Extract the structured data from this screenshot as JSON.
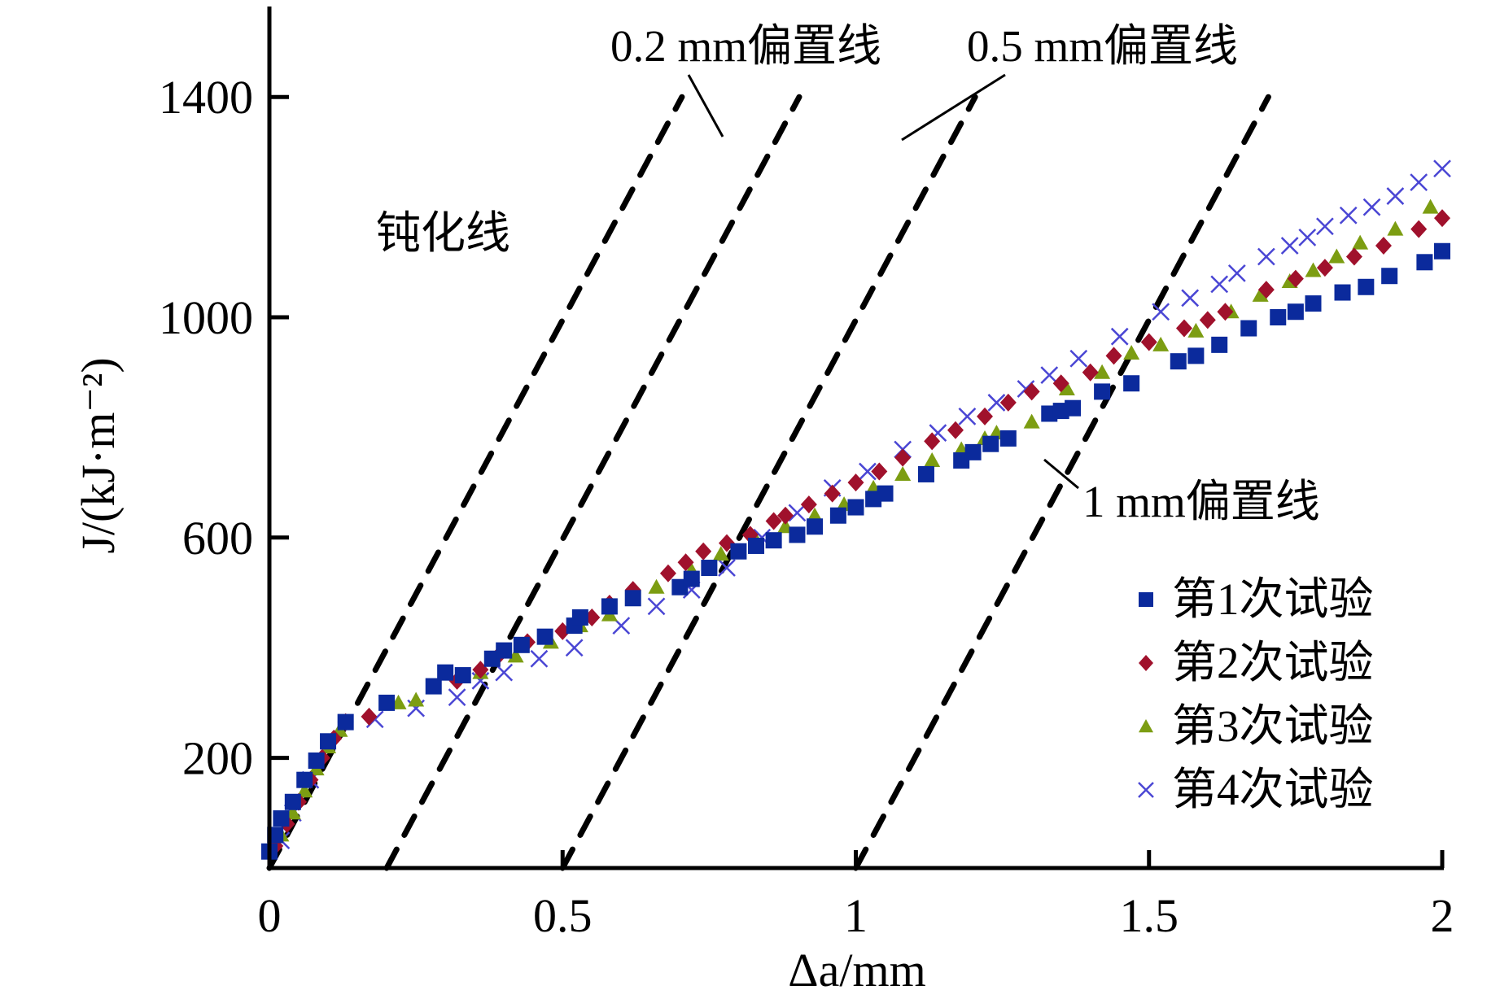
{
  "chart_data": {
    "type": "scatter",
    "title": "",
    "xlabel": "Δa/mm",
    "ylabel": "J/(kJ·m⁻²)",
    "xlim": [
      0,
      2
    ],
    "ylim": [
      0,
      1600
    ],
    "xticks": [
      0,
      0.5,
      1,
      1.5,
      2
    ],
    "xtick_labels": [
      "0",
      "0.5",
      "1",
      "1.5",
      "2"
    ],
    "yticks": [
      200,
      600,
      1000,
      1400
    ],
    "ytick_labels": [
      "200",
      "600",
      "1000",
      "1400"
    ],
    "grid": false,
    "legend_position": "bottom-right",
    "series": [
      {
        "name": "第1次试验",
        "marker": "square",
        "color": "#0b2a9c",
        "x": [
          0,
          0.01,
          0.02,
          0.04,
          0.06,
          0.08,
          0.1,
          0.13,
          0.2,
          0.28,
          0.3,
          0.33,
          0.38,
          0.4,
          0.43,
          0.47,
          0.52,
          0.53,
          0.58,
          0.62,
          0.7,
          0.72,
          0.75,
          0.8,
          0.83,
          0.86,
          0.9,
          0.93,
          0.97,
          1.0,
          1.03,
          1.05,
          1.12,
          1.18,
          1.2,
          1.23,
          1.26,
          1.33,
          1.35,
          1.37,
          1.42,
          1.47,
          1.55,
          1.58,
          1.62,
          1.67,
          1.72,
          1.75,
          1.78,
          1.83,
          1.87,
          1.91,
          1.97,
          2.0
        ],
        "y": [
          30,
          60,
          90,
          120,
          160,
          195,
          230,
          265,
          300,
          330,
          355,
          350,
          380,
          395,
          405,
          420,
          440,
          455,
          475,
          490,
          510,
          525,
          545,
          575,
          585,
          595,
          605,
          620,
          640,
          655,
          670,
          680,
          715,
          740,
          755,
          770,
          780,
          825,
          830,
          835,
          865,
          880,
          920,
          930,
          950,
          980,
          1000,
          1010,
          1025,
          1045,
          1055,
          1075,
          1100,
          1120
        ]
      },
      {
        "name": "第2次试验",
        "marker": "diamond",
        "color": "#a0112c",
        "x": [
          0.01,
          0.03,
          0.05,
          0.07,
          0.09,
          0.11,
          0.13,
          0.17,
          0.32,
          0.36,
          0.39,
          0.44,
          0.5,
          0.55,
          0.58,
          0.62,
          0.68,
          0.71,
          0.74,
          0.78,
          0.82,
          0.86,
          0.88,
          0.92,
          0.96,
          1.0,
          1.04,
          1.08,
          1.13,
          1.17,
          1.22,
          1.26,
          1.3,
          1.35,
          1.4,
          1.44,
          1.5,
          1.56,
          1.6,
          1.63,
          1.7,
          1.75,
          1.8,
          1.85,
          1.9,
          1.96,
          2.0
        ],
        "y": [
          40,
          80,
          120,
          160,
          200,
          235,
          265,
          275,
          340,
          360,
          385,
          410,
          430,
          455,
          480,
          505,
          535,
          555,
          575,
          590,
          605,
          630,
          640,
          660,
          680,
          700,
          720,
          745,
          775,
          795,
          820,
          845,
          865,
          880,
          900,
          930,
          955,
          980,
          995,
          1010,
          1050,
          1070,
          1090,
          1110,
          1130,
          1160,
          1180
        ]
      },
      {
        "name": "第3次试验",
        "marker": "triangle",
        "color": "#7c9d12",
        "x": [
          0.02,
          0.04,
          0.06,
          0.08,
          0.1,
          0.12,
          0.22,
          0.25,
          0.36,
          0.42,
          0.48,
          0.53,
          0.58,
          0.66,
          0.72,
          0.77,
          0.83,
          0.88,
          0.93,
          0.98,
          1.03,
          1.08,
          1.13,
          1.18,
          1.22,
          1.24,
          1.3,
          1.36,
          1.42,
          1.47,
          1.52,
          1.58,
          1.64,
          1.69,
          1.74,
          1.78,
          1.82,
          1.86,
          1.92,
          1.98
        ],
        "y": [
          60,
          100,
          140,
          180,
          220,
          250,
          300,
          305,
          355,
          385,
          410,
          440,
          460,
          510,
          540,
          570,
          595,
          620,
          640,
          660,
          690,
          715,
          740,
          760,
          780,
          790,
          810,
          870,
          900,
          935,
          950,
          975,
          1010,
          1040,
          1065,
          1085,
          1110,
          1135,
          1160,
          1200
        ]
      },
      {
        "name": "第4次试验",
        "marker": "cross",
        "color": "#4a46d4",
        "x": [
          0.02,
          0.04,
          0.07,
          0.18,
          0.25,
          0.32,
          0.36,
          0.4,
          0.46,
          0.52,
          0.6,
          0.66,
          0.72,
          0.78,
          0.84,
          0.9,
          0.96,
          1.02,
          1.08,
          1.14,
          1.19,
          1.24,
          1.29,
          1.33,
          1.38,
          1.45,
          1.52,
          1.57,
          1.62,
          1.65,
          1.7,
          1.74,
          1.77,
          1.8,
          1.84,
          1.88,
          1.92,
          1.96,
          2.0
        ],
        "y": [
          50,
          100,
          160,
          270,
          290,
          310,
          340,
          355,
          380,
          400,
          440,
          475,
          505,
          545,
          600,
          645,
          690,
          720,
          760,
          790,
          820,
          845,
          870,
          895,
          925,
          965,
          1010,
          1035,
          1060,
          1080,
          1110,
          1130,
          1145,
          1165,
          1185,
          1200,
          1220,
          1245,
          1270
        ]
      }
    ],
    "reference_lines": [
      {
        "name": "钝化线",
        "x0": 0.0,
        "slope_per_mm": 1990,
        "style": "dashed"
      },
      {
        "name": "0.2 mm偏置线",
        "x0": 0.2,
        "slope_per_mm": 1990,
        "style": "dashed"
      },
      {
        "name": "0.5 mm偏置线",
        "x0": 0.5,
        "slope_per_mm": 1990,
        "style": "dashed"
      },
      {
        "name": "1 mm偏置线",
        "x0": 1.0,
        "slope_per_mm": 1990,
        "style": "dashed"
      }
    ],
    "annotations": [
      {
        "text": "钝化线",
        "target": "blunting-line"
      },
      {
        "text": "0.2 mm偏置线",
        "target": "offset-0.2"
      },
      {
        "text": "0.5 mm偏置线",
        "target": "offset-0.5"
      },
      {
        "text": "1 mm偏置线",
        "target": "offset-1"
      }
    ]
  }
}
